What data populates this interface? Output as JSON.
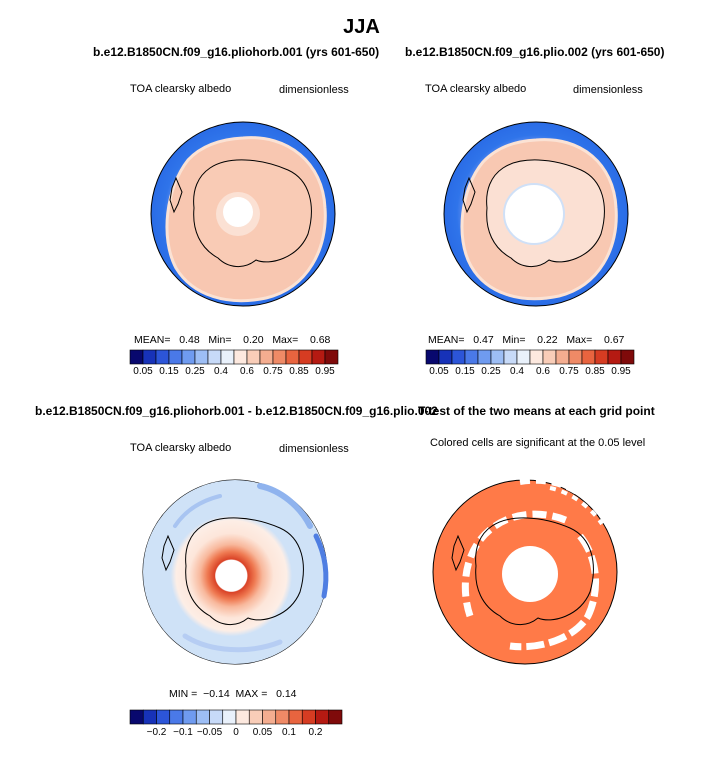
{
  "figure_title": "JJA",
  "colors": {
    "ocean": "#2f7cee",
    "ice": "#f7c2ac",
    "ice_edge": "#fbe3d6",
    "diff_bg": "#cfe2f7",
    "ttest": "#ff7a48"
  },
  "panels": [
    {
      "case": "b.e12.B1850CN.f09_g16.pliohorb.001 (yrs 601-650)",
      "variable": "TOA clearsky albedo",
      "units": "dimensionless",
      "stats": "MEAN=   0.48   Min=    0.20   Max=    0.68"
    },
    {
      "case": "b.e12.B1850CN.f09_g16.plio.002 (yrs 601-650)",
      "variable": "TOA clearsky albedo",
      "units": "dimensionless",
      "stats": "MEAN=   0.47   Min=    0.22   Max=    0.67"
    },
    {
      "case": "b.e12.B1850CN.f09_g16.pliohorb.001 - b.e12.B1850CN.f09_g16.plio.002",
      "variable": "TOA clearsky albedo",
      "units": "dimensionless",
      "stats": "MIN =  −0.14  MAX =   0.14"
    },
    {
      "case": "T-test of the two means at each grid point",
      "variable": "Colored cells are significant at the 0.05 level"
    }
  ],
  "colorbars": {
    "absolute": {
      "colors": [
        "#08086e",
        "#1732b8",
        "#2c55d8",
        "#4a79e8",
        "#6f9bf0",
        "#9dbef5",
        "#c7daf8",
        "#e9f1fb",
        "#fde9df",
        "#f9cdb8",
        "#f4ad90",
        "#ef8a66",
        "#e8643f",
        "#d63c22",
        "#b51a12",
        "#7f0a0a"
      ],
      "tick_labels": [
        "0.05",
        "0.15",
        "0.25",
        "0.4",
        "0.6",
        "0.75",
        "0.85",
        "0.95"
      ],
      "tick_positions": [
        1,
        3,
        5,
        7,
        9,
        11,
        13,
        15
      ]
    },
    "difference": {
      "colors": [
        "#08086e",
        "#1732b8",
        "#2c55d8",
        "#4a79e8",
        "#6f9bf0",
        "#9dbef5",
        "#c7daf8",
        "#e9f1fb",
        "#fde9df",
        "#f9cdb8",
        "#f4ad90",
        "#ef8a66",
        "#e8643f",
        "#d63c22",
        "#b51a12",
        "#7f0a0a"
      ],
      "tick_labels": [
        "−0.2",
        "−0.1",
        "−0.05",
        "0",
        "0.05",
        "0.1",
        "0.2"
      ],
      "tick_positions": [
        2,
        4,
        6,
        8,
        10,
        12,
        14
      ]
    }
  },
  "chart_data": [
    {
      "type": "heatmap",
      "title": "b.e12.B1850CN.f09_g16.pliohorb.001 (yrs 601-650)",
      "variable": "TOA clearsky albedo",
      "units": "dimensionless",
      "projection": "south polar stereographic",
      "season": "JJA",
      "mean": 0.48,
      "min": 0.2,
      "max": 0.68
    },
    {
      "type": "heatmap",
      "title": "b.e12.B1850CN.f09_g16.plio.002 (yrs 601-650)",
      "variable": "TOA clearsky albedo",
      "units": "dimensionless",
      "projection": "south polar stereographic",
      "season": "JJA",
      "mean": 0.47,
      "min": 0.22,
      "max": 0.67
    },
    {
      "type": "heatmap",
      "title": "b.e12.B1850CN.f09_g16.pliohorb.001 - b.e12.B1850CN.f09_g16.plio.002",
      "variable": "TOA clearsky albedo difference",
      "units": "dimensionless",
      "min": -0.14,
      "max": 0.14
    },
    {
      "type": "heatmap",
      "title": "T-test of the two means at each grid point",
      "note": "Colored cells are significant at the 0.05 level"
    }
  ]
}
